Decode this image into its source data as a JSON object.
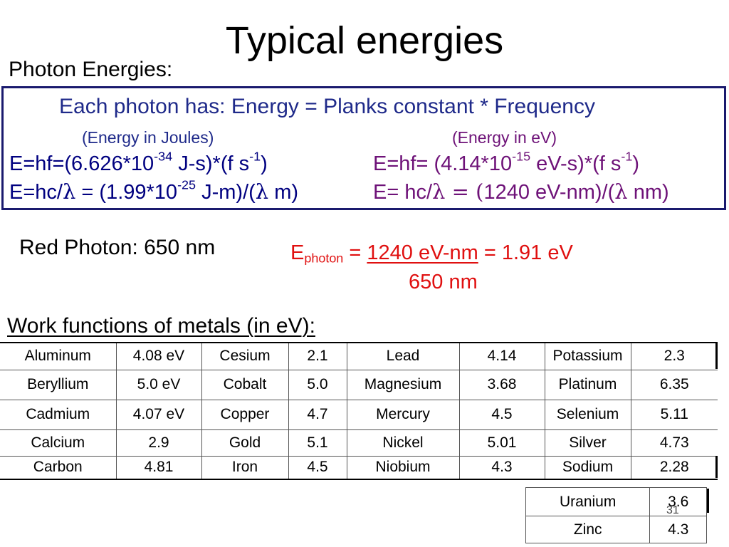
{
  "title": "Typical energies",
  "photon_heading": "Photon Energies:",
  "formula_box": {
    "intro": "Each photon has:  Energy = Planks constant * Frequency",
    "joules_label": "(Energy in Joules)",
    "ev_label": "(Energy in eV)",
    "j1": {
      "a": "E=hf=(6.626*10",
      "exp": "-34",
      "b": " J-s)*(f s",
      "exp2": "-1",
      "c": ")"
    },
    "j2": {
      "a": "E=hc/",
      "lambda": "λ",
      "b": " = (1.99*10",
      "exp": "-25",
      "c": " J-m)/(",
      "lambda2": "λ",
      "d": " m)"
    },
    "e1": {
      "a": "E=hf= (4.14*10",
      "exp": "-15",
      "b": " eV-s)*(f s",
      "exp2": "-1",
      "c": ")"
    },
    "e2": {
      "a": "E= hc/",
      "lambda": "λ",
      "b": " = (",
      "c": "1240 eV-nm)/(",
      "lambda2": "λ",
      "d": " nm)"
    }
  },
  "red_photon": {
    "label": "Red Photon: 650 nm",
    "e": "E",
    "sub": "photon",
    "eq": " = ",
    "numerator": "1240 eV-nm",
    "result": " = 1.91 eV",
    "denominator": "650 nm"
  },
  "work_functions_heading": "Work functions of metals (in eV):",
  "work_functions": [
    [
      "Aluminum",
      "4.08 eV",
      "Cesium",
      "2.1",
      "Lead",
      "4.14",
      "Potassium",
      "2.3"
    ],
    [
      "Beryllium",
      "5.0 eV",
      "Cobalt",
      "5.0",
      "Magnesium",
      "3.68",
      "Platinum",
      "6.35"
    ],
    [
      "Cadmium",
      "4.07 eV",
      "Copper",
      "4.7",
      "Mercury",
      "4.5",
      "Selenium",
      "5.11"
    ],
    [
      "Calcium",
      "2.9",
      "Gold",
      "5.1",
      "Nickel",
      "5.01",
      "Silver",
      "4.73"
    ],
    [
      "Carbon",
      "4.81",
      "Iron",
      "4.5",
      "Niobium",
      "4.3",
      "Sodium",
      "2.28"
    ]
  ],
  "work_functions_extra": [
    [
      "Uranium",
      "3.6"
    ],
    [
      "Zinc",
      "4.3"
    ]
  ],
  "slide_number": "31"
}
